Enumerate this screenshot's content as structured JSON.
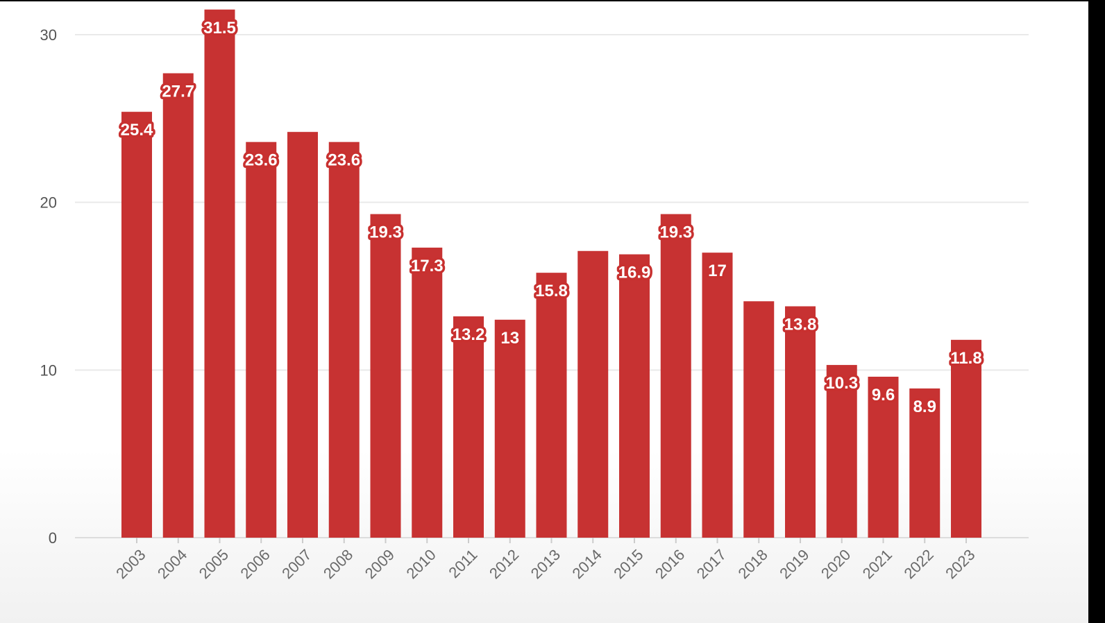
{
  "chart_data": {
    "type": "bar",
    "categories": [
      "2003",
      "2004",
      "2005",
      "2006",
      "2007",
      "2008",
      "2009",
      "2010",
      "2011",
      "2012",
      "2013",
      "2014",
      "2015",
      "2016",
      "2017",
      "2018",
      "2019",
      "2020",
      "2021",
      "2022",
      "2023"
    ],
    "values": [
      25.4,
      27.7,
      31.5,
      23.6,
      24.2,
      23.6,
      19.3,
      17.3,
      13.2,
      13,
      15.8,
      17.1,
      16.9,
      19.3,
      17,
      14.1,
      13.8,
      10.3,
      9.6,
      8.9,
      11.8
    ],
    "data_labels": [
      "25.4",
      "27.7",
      "31.5",
      "23.6",
      "",
      "23.6",
      "19.3",
      "17.3",
      "13.2",
      "13",
      "15.8",
      "",
      "16.9",
      "19.3",
      "17",
      "",
      "13.8",
      "10.3",
      "9.6",
      "8.9",
      "11.8"
    ],
    "yticks": [
      "0",
      "10",
      "20",
      "30"
    ],
    "ylim": [
      0,
      30
    ],
    "title": "",
    "xlabel": "",
    "ylabel": "",
    "grid": true,
    "bar_color": "#c73232"
  }
}
